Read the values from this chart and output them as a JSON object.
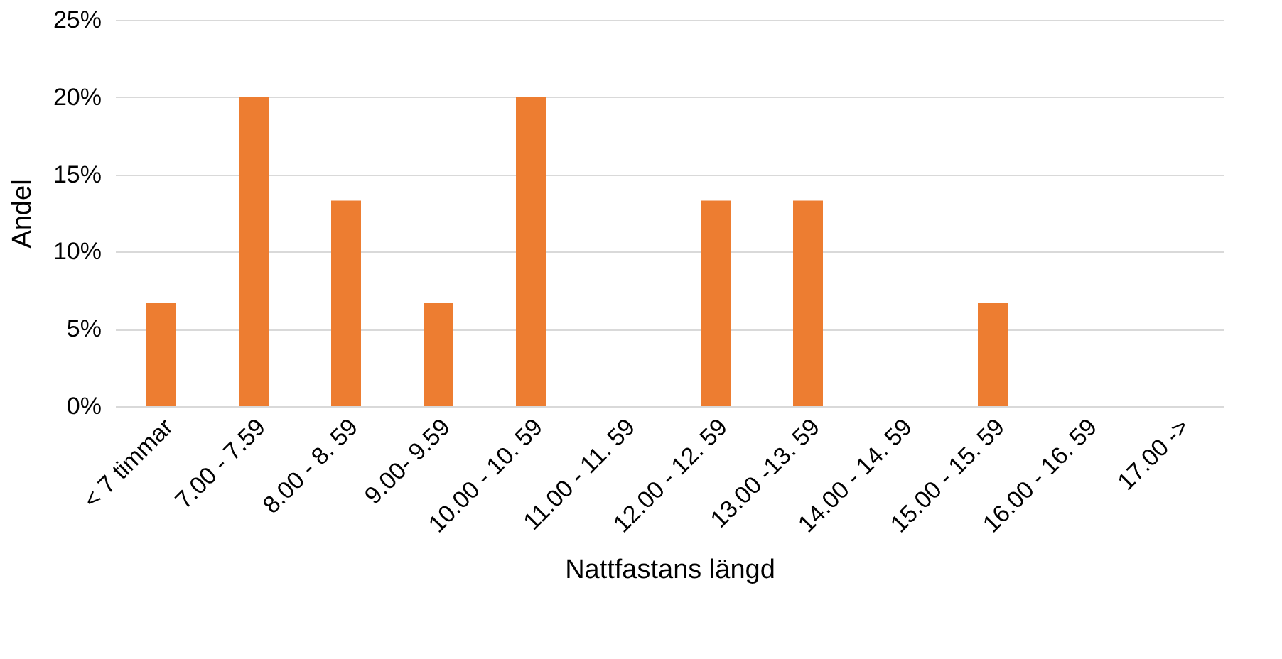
{
  "chart_data": {
    "type": "bar",
    "xlabel": "Nattfastans  längd",
    "ylabel": "Andel",
    "categories": [
      "< 7 timmar",
      "7.00 - 7.59",
      "8.00 - 8. 59",
      "9.00- 9.59",
      "10.00 - 10. 59",
      "11.00 - 11. 59",
      "12.00 - 12. 59",
      "13.00 -13. 59",
      "14.00 - 14. 59",
      "15.00 - 15. 59",
      "16.00 - 16. 59",
      "17.00 ->"
    ],
    "values": [
      6.7,
      20,
      13.3,
      6.7,
      20,
      0,
      13.3,
      13.3,
      0,
      6.7,
      0,
      0
    ],
    "color": "#ed7d31",
    "ylim": [
      0,
      25
    ],
    "yticks": [
      {
        "value": 0,
        "label": "0%"
      },
      {
        "value": 5,
        "label": "5%"
      },
      {
        "value": 10,
        "label": "10%"
      },
      {
        "value": 15,
        "label": "15%"
      },
      {
        "value": 20,
        "label": "20%"
      },
      {
        "value": 25,
        "label": "25%"
      }
    ],
    "grid": "y"
  }
}
